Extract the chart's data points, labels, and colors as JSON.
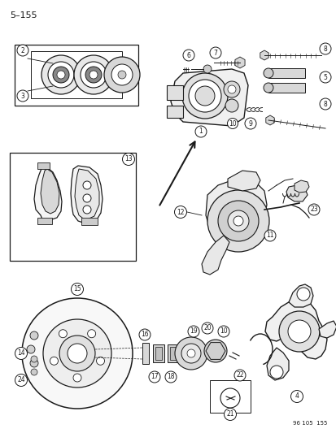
{
  "page_number": "5–155",
  "footer_code": "96 105  155",
  "background_color": "#ffffff",
  "line_color": "#1a1a1a",
  "fig_width": 4.14,
  "fig_height": 5.33,
  "dpi": 100
}
